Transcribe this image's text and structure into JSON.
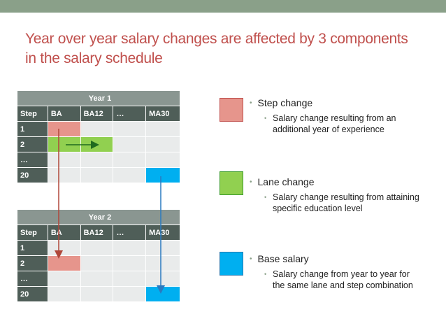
{
  "title": "Year over year salary changes are affected by 3 components in the salary schedule",
  "tables": [
    {
      "name": "Year 1",
      "columns": [
        "Step",
        "BA",
        "BA12",
        "…",
        "MA30"
      ],
      "rows": [
        "1",
        "2",
        "…",
        "20"
      ],
      "highlights": [
        {
          "row": "1",
          "col": "BA",
          "color": "#e6958c"
        },
        {
          "row": "2",
          "col": "BA",
          "color": "#91d050"
        },
        {
          "row": "2",
          "col": "BA12",
          "color": "#91d050"
        },
        {
          "row": "20",
          "col": "MA30",
          "color": "#00aff0"
        }
      ]
    },
    {
      "name": "Year 2",
      "columns": [
        "Step",
        "BA",
        "BA12",
        "…",
        "MA30"
      ],
      "rows": [
        "1",
        "2",
        "…",
        "20"
      ],
      "highlights": [
        {
          "row": "2",
          "col": "BA",
          "color": "#e6958c"
        },
        {
          "row": "20",
          "col": "MA30",
          "color": "#00aff0"
        }
      ]
    }
  ],
  "legend": [
    {
      "label": "Step change",
      "description": "Salary change resulting from an additional year of experience",
      "color": "#e6958c",
      "border": "#c0504d"
    },
    {
      "label": "Lane change",
      "description": "Salary change resulting from attaining specific education level",
      "color": "#91d050",
      "border": "#3a9a2a"
    },
    {
      "label": "Base salary",
      "description": "Salary change from year to year for the same lane and step combination",
      "color": "#00aff0",
      "border": "#2a7ab0"
    }
  ],
  "colors": {
    "title": "#c0504d",
    "topbar": "#8aa089",
    "step_arrow": "#b0473a",
    "lane_arrow": "#1f6b1f",
    "base_arrow": "#2a7ac0"
  }
}
